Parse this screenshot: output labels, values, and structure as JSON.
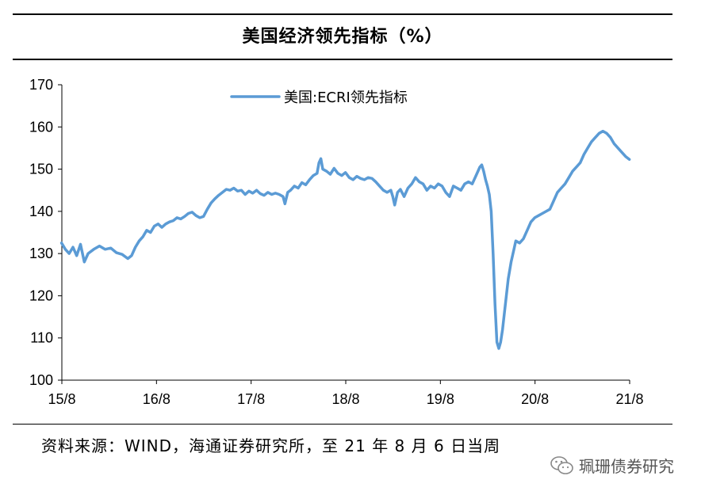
{
  "header": {
    "title": "美国经济领先指标（%）"
  },
  "footer": {
    "source": "资料来源：WIND，海通证券研究所，至 21 年 8 月 6 日当周",
    "watermark_text": "珮珊债券研究",
    "watermark_icon": "wechat-icon"
  },
  "colors": {
    "series": "#5b9bd5",
    "axis": "#000000"
  },
  "chart_data": {
    "type": "line",
    "title": "美国经济领先指标（%）",
    "xlabel": "",
    "ylabel": "",
    "ylim": [
      100,
      170
    ],
    "yticks": [
      100,
      110,
      120,
      130,
      140,
      150,
      160,
      170
    ],
    "xlim": [
      2015.583,
      2021.583
    ],
    "xticks": [
      {
        "x": 2015.583,
        "label": "15/8"
      },
      {
        "x": 2016.583,
        "label": "16/8"
      },
      {
        "x": 2017.583,
        "label": "17/8"
      },
      {
        "x": 2018.583,
        "label": "18/8"
      },
      {
        "x": 2019.583,
        "label": "19/8"
      },
      {
        "x": 2020.583,
        "label": "20/8"
      },
      {
        "x": 2021.583,
        "label": "21/8"
      }
    ],
    "grid": false,
    "legend_position": "top-center",
    "series": [
      {
        "name": "美国:ECRI领先指标",
        "points": [
          [
            2015.58,
            132.5
          ],
          [
            2015.62,
            131.0
          ],
          [
            2015.66,
            130.0
          ],
          [
            2015.7,
            131.5
          ],
          [
            2015.74,
            129.5
          ],
          [
            2015.78,
            132.2
          ],
          [
            2015.82,
            128.0
          ],
          [
            2015.86,
            130.0
          ],
          [
            2015.92,
            131.0
          ],
          [
            2015.98,
            131.8
          ],
          [
            2016.04,
            131.0
          ],
          [
            2016.1,
            131.3
          ],
          [
            2016.16,
            130.2
          ],
          [
            2016.22,
            129.8
          ],
          [
            2016.28,
            128.8
          ],
          [
            2016.32,
            129.5
          ],
          [
            2016.36,
            131.5
          ],
          [
            2016.4,
            133.0
          ],
          [
            2016.44,
            134.0
          ],
          [
            2016.48,
            135.5
          ],
          [
            2016.52,
            135.0
          ],
          [
            2016.56,
            136.5
          ],
          [
            2016.6,
            137.0
          ],
          [
            2016.64,
            136.2
          ],
          [
            2016.68,
            137.0
          ],
          [
            2016.72,
            137.5
          ],
          [
            2016.76,
            137.8
          ],
          [
            2016.8,
            138.5
          ],
          [
            2016.84,
            138.2
          ],
          [
            2016.88,
            138.8
          ],
          [
            2016.92,
            139.5
          ],
          [
            2016.96,
            139.8
          ],
          [
            2017.0,
            139.0
          ],
          [
            2017.04,
            138.5
          ],
          [
            2017.08,
            138.8
          ],
          [
            2017.12,
            140.5
          ],
          [
            2017.16,
            142.0
          ],
          [
            2017.2,
            143.0
          ],
          [
            2017.24,
            143.8
          ],
          [
            2017.28,
            144.5
          ],
          [
            2017.32,
            145.2
          ],
          [
            2017.36,
            145.0
          ],
          [
            2017.4,
            145.5
          ],
          [
            2017.44,
            144.8
          ],
          [
            2017.48,
            145.0
          ],
          [
            2017.52,
            144.0
          ],
          [
            2017.56,
            144.8
          ],
          [
            2017.6,
            144.3
          ],
          [
            2017.64,
            145.0
          ],
          [
            2017.68,
            144.2
          ],
          [
            2017.72,
            143.8
          ],
          [
            2017.76,
            144.5
          ],
          [
            2017.8,
            144.0
          ],
          [
            2017.84,
            144.3
          ],
          [
            2017.88,
            144.0
          ],
          [
            2017.92,
            143.5
          ],
          [
            2017.94,
            141.8
          ],
          [
            2017.97,
            144.5
          ],
          [
            2018.0,
            145.0
          ],
          [
            2018.04,
            146.0
          ],
          [
            2018.08,
            145.5
          ],
          [
            2018.12,
            146.8
          ],
          [
            2018.16,
            146.3
          ],
          [
            2018.2,
            147.5
          ],
          [
            2018.24,
            148.5
          ],
          [
            2018.28,
            149.0
          ],
          [
            2018.3,
            151.5
          ],
          [
            2018.32,
            152.5
          ],
          [
            2018.34,
            150.0
          ],
          [
            2018.38,
            149.5
          ],
          [
            2018.42,
            148.8
          ],
          [
            2018.46,
            150.2
          ],
          [
            2018.5,
            149.0
          ],
          [
            2018.54,
            148.5
          ],
          [
            2018.58,
            149.2
          ],
          [
            2018.62,
            148.0
          ],
          [
            2018.66,
            147.5
          ],
          [
            2018.7,
            148.3
          ],
          [
            2018.74,
            147.8
          ],
          [
            2018.78,
            147.5
          ],
          [
            2018.82,
            148.0
          ],
          [
            2018.86,
            147.8
          ],
          [
            2018.9,
            147.0
          ],
          [
            2018.94,
            146.0
          ],
          [
            2018.98,
            145.0
          ],
          [
            2019.02,
            144.5
          ],
          [
            2019.06,
            145.0
          ],
          [
            2019.08,
            143.5
          ],
          [
            2019.1,
            141.5
          ],
          [
            2019.13,
            144.5
          ],
          [
            2019.16,
            145.2
          ],
          [
            2019.2,
            143.5
          ],
          [
            2019.24,
            145.5
          ],
          [
            2019.28,
            146.5
          ],
          [
            2019.32,
            148.0
          ],
          [
            2019.36,
            147.0
          ],
          [
            2019.4,
            146.5
          ],
          [
            2019.44,
            145.0
          ],
          [
            2019.48,
            146.0
          ],
          [
            2019.52,
            145.5
          ],
          [
            2019.56,
            146.5
          ],
          [
            2019.6,
            146.0
          ],
          [
            2019.64,
            144.5
          ],
          [
            2019.68,
            143.5
          ],
          [
            2019.72,
            146.0
          ],
          [
            2019.76,
            145.5
          ],
          [
            2019.8,
            145.0
          ],
          [
            2019.84,
            146.5
          ],
          [
            2019.88,
            147.0
          ],
          [
            2019.92,
            146.5
          ],
          [
            2019.96,
            148.5
          ],
          [
            2020.0,
            150.5
          ],
          [
            2020.02,
            151.0
          ],
          [
            2020.04,
            149.5
          ],
          [
            2020.06,
            147.5
          ],
          [
            2020.08,
            146.0
          ],
          [
            2020.1,
            144.0
          ],
          [
            2020.12,
            140.0
          ],
          [
            2020.14,
            130.0
          ],
          [
            2020.16,
            118.0
          ],
          [
            2020.18,
            109.0
          ],
          [
            2020.2,
            107.5
          ],
          [
            2020.22,
            109.0
          ],
          [
            2020.24,
            112.0
          ],
          [
            2020.26,
            116.0
          ],
          [
            2020.28,
            120.0
          ],
          [
            2020.3,
            124.0
          ],
          [
            2020.33,
            128.0
          ],
          [
            2020.36,
            131.0
          ],
          [
            2020.38,
            133.0
          ],
          [
            2020.42,
            132.5
          ],
          [
            2020.46,
            133.5
          ],
          [
            2020.5,
            135.5
          ],
          [
            2020.54,
            137.5
          ],
          [
            2020.58,
            138.5
          ],
          [
            2020.62,
            139.0
          ],
          [
            2020.66,
            139.5
          ],
          [
            2020.7,
            140.0
          ],
          [
            2020.74,
            140.5
          ],
          [
            2020.78,
            142.5
          ],
          [
            2020.82,
            144.5
          ],
          [
            2020.86,
            145.5
          ],
          [
            2020.9,
            146.5
          ],
          [
            2020.94,
            148.0
          ],
          [
            2020.98,
            149.5
          ],
          [
            2021.02,
            150.5
          ],
          [
            2021.06,
            151.5
          ],
          [
            2021.1,
            153.5
          ],
          [
            2021.14,
            155.0
          ],
          [
            2021.18,
            156.5
          ],
          [
            2021.22,
            157.5
          ],
          [
            2021.26,
            158.5
          ],
          [
            2021.3,
            159.0
          ],
          [
            2021.34,
            158.5
          ],
          [
            2021.38,
            157.5
          ],
          [
            2021.42,
            156.0
          ],
          [
            2021.46,
            155.0
          ],
          [
            2021.5,
            154.0
          ],
          [
            2021.54,
            153.0
          ],
          [
            2021.58,
            152.3
          ]
        ]
      }
    ]
  }
}
